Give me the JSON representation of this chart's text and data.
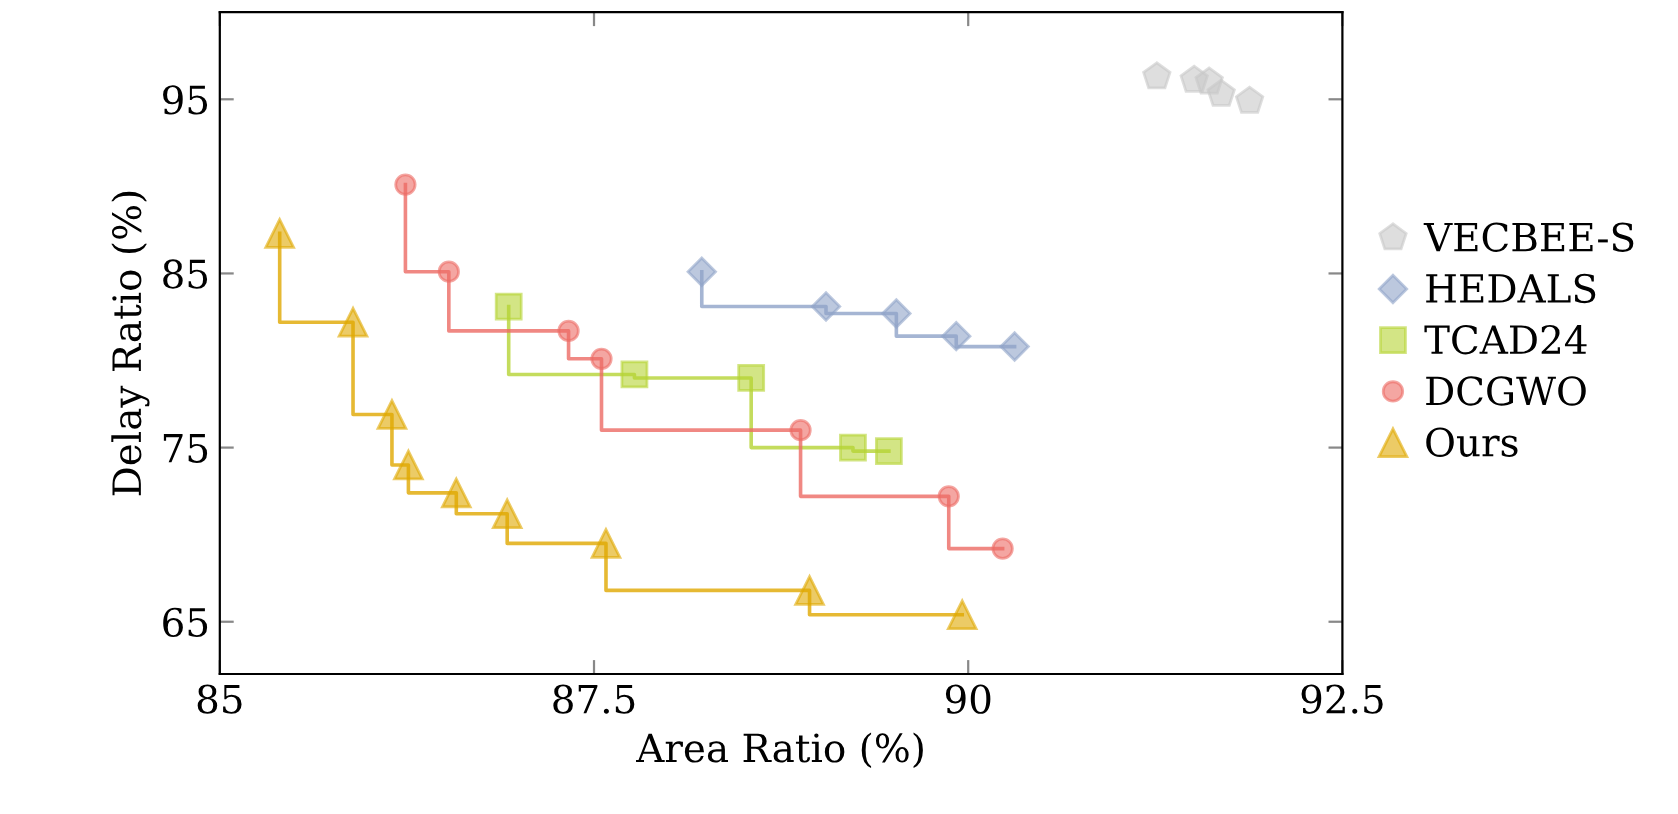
{
  "chart_data": {
    "type": "step",
    "xlabel": "Area Ratio (%)",
    "ylabel": "Delay Ratio (%)",
    "xlim": [
      85,
      92.5
    ],
    "ylim": [
      62,
      100
    ],
    "xticks": [
      85,
      87.5,
      90,
      92.5
    ],
    "yticks": [
      65,
      75,
      85,
      95
    ],
    "grid": false,
    "legend": "right",
    "series": [
      {
        "name": "VECBEE-S",
        "type": "scatter",
        "color": "#c8c8c8",
        "x": [
          91.26,
          91.51,
          91.61,
          91.69,
          91.88
        ],
        "values": [
          96.3,
          96.1,
          96.0,
          95.3,
          94.9
        ]
      },
      {
        "name": "HEDALS",
        "marker": "diamond",
        "color": "#8fa3c8",
        "x": [
          88.22,
          89.05,
          89.52,
          89.92,
          90.31
        ],
        "values": [
          85.1,
          83.1,
          82.7,
          81.4,
          80.8
        ]
      },
      {
        "name": "TCAD24",
        "marker": "square",
        "color": "#b5d334",
        "x": [
          86.93,
          87.77,
          88.55,
          89.23,
          89.47
        ],
        "values": [
          83.1,
          79.2,
          79.0,
          75.0,
          74.8
        ]
      },
      {
        "name": "DCGWO",
        "marker": "circle",
        "color": "#ec6a64",
        "x": [
          86.24,
          86.53,
          87.33,
          87.55,
          88.88,
          89.87,
          90.23
        ],
        "values": [
          90.1,
          85.1,
          81.7,
          80.1,
          76.0,
          72.2,
          69.2
        ]
      },
      {
        "name": "Ours",
        "marker": "triangle",
        "color": "#e0a800",
        "x": [
          85.4,
          85.89,
          86.15,
          86.26,
          86.58,
          86.92,
          87.58,
          88.94,
          89.96
        ],
        "values": [
          87.3,
          82.2,
          76.9,
          74.0,
          72.4,
          71.2,
          69.5,
          66.8,
          65.4
        ]
      }
    ]
  }
}
